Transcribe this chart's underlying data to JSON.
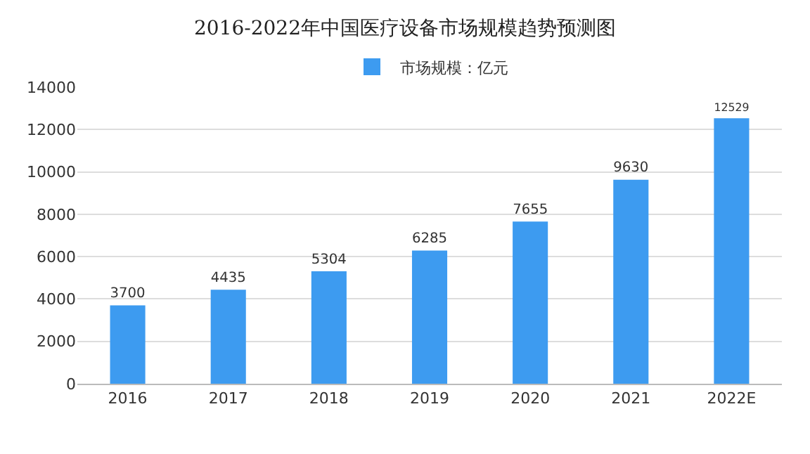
{
  "chart_data": {
    "type": "bar",
    "title": "2016-2022年中国医疗设备市场规模趋势预测图",
    "categories": [
      "2016",
      "2017",
      "2018",
      "2019",
      "2020",
      "2021",
      "2022E"
    ],
    "series": [
      {
        "name": "市场规模：亿元",
        "color": "#3d9bf0",
        "values": [
          3700,
          4435,
          5304,
          6285,
          7655,
          9630,
          12529
        ]
      }
    ],
    "ylim": [
      0,
      14000
    ],
    "yticks": [
      0,
      2000,
      4000,
      6000,
      8000,
      10000,
      12000,
      14000
    ],
    "grid": "y",
    "legend": "top",
    "data_labels": true
  }
}
